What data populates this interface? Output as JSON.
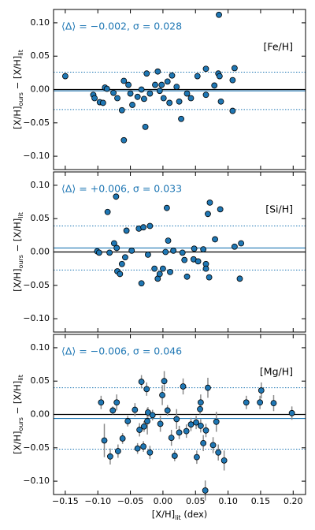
{
  "chart_data": [
    {
      "type": "scatter",
      "annotation": "⟨Δ⟩ = −0.002, σ = 0.028",
      "label": "[Fe/H]",
      "ylabel": [
        {
          "text": "[X/H]"
        },
        {
          "text": "ours",
          "sub": true
        },
        {
          "text": " − [X/H]"
        },
        {
          "text": "lit",
          "sub": true
        }
      ],
      "color": "#1f77b4",
      "x": [
        -0.15,
        -0.107,
        -0.105,
        -0.097,
        -0.092,
        -0.089,
        -0.086,
        -0.076,
        -0.07,
        -0.063,
        -0.06,
        -0.06,
        -0.053,
        -0.05,
        -0.047,
        -0.039,
        -0.033,
        -0.029,
        -0.027,
        -0.025,
        -0.02,
        -0.012,
        -0.008,
        -0.005,
        -0.002,
        0.001,
        0.007,
        0.01,
        0.014,
        0.021,
        0.025,
        0.028,
        0.037,
        0.043,
        0.053,
        0.066,
        0.079,
        0.085,
        0.087,
        0.086,
        0.089,
        0.107,
        0.11,
        0.107,
        0.066
      ],
      "y": [
        0.02,
        -0.008,
        -0.013,
        -0.019,
        -0.02,
        0.003,
        0.001,
        -0.005,
        -0.013,
        -0.031,
        -0.076,
        0.013,
        0.007,
        -0.006,
        -0.023,
        -0.011,
        0.0,
        -0.014,
        -0.056,
        0.024,
        -0.006,
        0.007,
        0.027,
        -0.002,
        0.007,
        -0.013,
        0.012,
        -0.02,
        0.021,
        0.004,
        -0.018,
        -0.044,
        -0.006,
        -0.013,
        0.02,
        0.031,
        0.006,
        0.024,
        0.02,
        0.112,
        -0.018,
        0.014,
        0.032,
        -0.032,
        -0.008
      ],
      "xlim": [
        -0.168,
        0.219
      ],
      "xticks": [
        -0.15,
        -0.1,
        -0.05,
        0,
        0.05,
        0.1,
        0.15,
        0.2
      ],
      "ylim": [
        -0.12,
        0.12
      ],
      "yticks": [
        {
          "value": -0.1,
          "label": "−0.10"
        },
        {
          "value": -0.05,
          "label": "−0.05"
        },
        {
          "value": 0,
          "label": "0.00"
        },
        {
          "value": 0.05,
          "label": "0.05"
        },
        {
          "value": 0.1,
          "label": "0.10"
        }
      ],
      "hlines": [
        {
          "value": 0,
          "color": "#000000",
          "style": "solid"
        },
        {
          "value": -0.002,
          "color": "#1f77b4",
          "style": "solid"
        },
        {
          "value": 0.026,
          "color": "#1f77b4",
          "style": "dotted"
        },
        {
          "value": -0.03,
          "color": "#1f77b4",
          "style": "dotted"
        }
      ]
    },
    {
      "type": "scatter",
      "annotation": "⟨Δ⟩ = +0.006, σ = 0.033",
      "label": "[Si/H]",
      "ylabel": [
        {
          "text": "[X/H]"
        },
        {
          "text": "ours",
          "sub": true
        },
        {
          "text": " − [X/H]"
        },
        {
          "text": "lit",
          "sub": true
        }
      ],
      "color": "#1f77b4",
      "x": [
        -0.101,
        -0.098,
        -0.085,
        -0.082,
        -0.075,
        -0.072,
        -0.071,
        -0.07,
        -0.066,
        -0.063,
        -0.058,
        -0.056,
        -0.048,
        -0.037,
        -0.033,
        -0.03,
        -0.023,
        -0.02,
        -0.013,
        -0.008,
        -0.005,
        0.0,
        0.004,
        0.006,
        0.008,
        0.011,
        0.016,
        0.03,
        0.033,
        0.037,
        0.047,
        0.048,
        0.054,
        0.062,
        0.066,
        0.069,
        0.072,
        0.071,
        0.08,
        0.088,
        0.11,
        0.12,
        0.118,
        0.066
      ],
      "y": [
        0.001,
        -0.001,
        0.06,
        -0.001,
        0.013,
        0.083,
        0.006,
        -0.029,
        -0.033,
        -0.018,
        -0.008,
        0.032,
        0.002,
        0.035,
        -0.047,
        0.037,
        -0.004,
        0.039,
        -0.025,
        -0.04,
        -0.033,
        -0.025,
        0.0,
        0.066,
        0.017,
        -0.03,
        0.002,
        -0.001,
        -0.012,
        -0.037,
        -0.011,
        0.005,
        -0.014,
        0.004,
        -0.018,
        0.057,
        0.074,
        -0.038,
        0.019,
        0.064,
        0.008,
        0.013,
        -0.04,
        -0.025
      ],
      "xlim": [
        -0.168,
        0.219
      ],
      "xticks": [
        -0.15,
        -0.1,
        -0.05,
        0,
        0.05,
        0.1,
        0.15,
        0.2
      ],
      "ylim": [
        -0.12,
        0.12
      ],
      "yticks": [
        {
          "value": -0.1,
          "label": "−0.10"
        },
        {
          "value": -0.05,
          "label": "−0.05"
        },
        {
          "value": 0,
          "label": "0.00"
        },
        {
          "value": 0.05,
          "label": "0.05"
        },
        {
          "value": 0.1,
          "label": "0.10"
        }
      ],
      "hlines": [
        {
          "value": 0,
          "color": "#000000",
          "style": "solid"
        },
        {
          "value": 0.006,
          "color": "#1f77b4",
          "style": "solid"
        },
        {
          "value": 0.039,
          "color": "#1f77b4",
          "style": "dotted"
        },
        {
          "value": -0.027,
          "color": "#1f77b4",
          "style": "dotted"
        }
      ]
    },
    {
      "type": "scatter",
      "annotation": "⟨Δ⟩ = −0.006, σ = 0.046",
      "label": "[Mg/H]",
      "ylabel": [
        {
          "text": "[X/H]"
        },
        {
          "text": "ours",
          "sub": true
        },
        {
          "text": " − [X/H]"
        },
        {
          "text": "lit",
          "sub": true
        }
      ],
      "xlabel": [
        {
          "text": "[X/H]"
        },
        {
          "text": "lit",
          "sub": true
        },
        {
          "text": " (dex)"
        }
      ],
      "color": "#1f77b4",
      "x": [
        -0.095,
        -0.09,
        -0.081,
        -0.077,
        -0.071,
        -0.069,
        -0.062,
        -0.054,
        -0.043,
        -0.039,
        -0.036,
        -0.033,
        -0.03,
        -0.029,
        -0.025,
        -0.024,
        -0.023,
        -0.02,
        -0.016,
        -0.004,
        -0.001,
        0.002,
        0.007,
        0.013,
        0.018,
        0.021,
        0.025,
        0.031,
        0.036,
        0.043,
        0.051,
        0.058,
        0.052,
        0.058,
        0.066,
        0.069,
        0.062,
        0.065,
        0.077,
        0.082,
        0.085,
        0.094,
        0.128,
        0.149,
        0.151,
        0.17,
        0.198,
        0.057
      ],
      "y": [
        0.018,
        -0.039,
        -0.063,
        0.006,
        0.018,
        -0.055,
        -0.036,
        -0.01,
        0.007,
        -0.051,
        -0.023,
        0.049,
        -0.048,
        -0.018,
        0.038,
        -0.01,
        0.003,
        -0.057,
        -0.001,
        -0.014,
        0.029,
        0.05,
        0.006,
        -0.035,
        -0.062,
        -0.007,
        -0.027,
        0.042,
        -0.025,
        -0.015,
        -0.012,
        0.018,
        -0.064,
        -0.017,
        -0.024,
        0.04,
        -0.043,
        -0.114,
        -0.046,
        -0.011,
        -0.057,
        -0.069,
        0.018,
        0.018,
        0.036,
        0.017,
        0.002,
        0.008
      ],
      "yerr": [
        0.01,
        0.025,
        0.012,
        0.006,
        0.012,
        0.01,
        0.008,
        0.008,
        0.01,
        0.008,
        0.01,
        0.01,
        0.008,
        0.008,
        0.01,
        0.02,
        0.008,
        0.01,
        0.008,
        0.012,
        0.015,
        0.015,
        0.008,
        0.012,
        0.008,
        0.015,
        0.01,
        0.012,
        0.01,
        0.01,
        0.01,
        0.012,
        0.01,
        0.01,
        0.01,
        0.015,
        0.012,
        0.015,
        0.012,
        0.015,
        0.012,
        0.015,
        0.01,
        0.01,
        0.012,
        0.012,
        0.01,
        0.008
      ],
      "xlim": [
        -0.168,
        0.219
      ],
      "xticks": [
        {
          "value": -0.15,
          "label": "−0.15"
        },
        {
          "value": -0.1,
          "label": "−0.10"
        },
        {
          "value": -0.05,
          "label": "−0.05"
        },
        {
          "value": 0,
          "label": "0.00"
        },
        {
          "value": 0.05,
          "label": "0.05"
        },
        {
          "value": 0.1,
          "label": "0.10"
        },
        {
          "value": 0.15,
          "label": "0.15"
        },
        {
          "value": 0.2,
          "label": "0.20"
        }
      ],
      "ylim": [
        -0.12,
        0.12
      ],
      "yticks": [
        {
          "value": -0.1,
          "label": "−0.10"
        },
        {
          "value": -0.05,
          "label": "−0.05"
        },
        {
          "value": 0,
          "label": "0.00"
        },
        {
          "value": 0.05,
          "label": "0.05"
        },
        {
          "value": 0.1,
          "label": "0.10"
        }
      ],
      "hlines": [
        {
          "value": 0,
          "color": "#000000",
          "style": "solid"
        },
        {
          "value": -0.006,
          "color": "#1f77b4",
          "style": "solid"
        },
        {
          "value": 0.04,
          "color": "#1f77b4",
          "style": "dotted"
        },
        {
          "value": -0.052,
          "color": "#1f77b4",
          "style": "dotted"
        }
      ]
    }
  ]
}
